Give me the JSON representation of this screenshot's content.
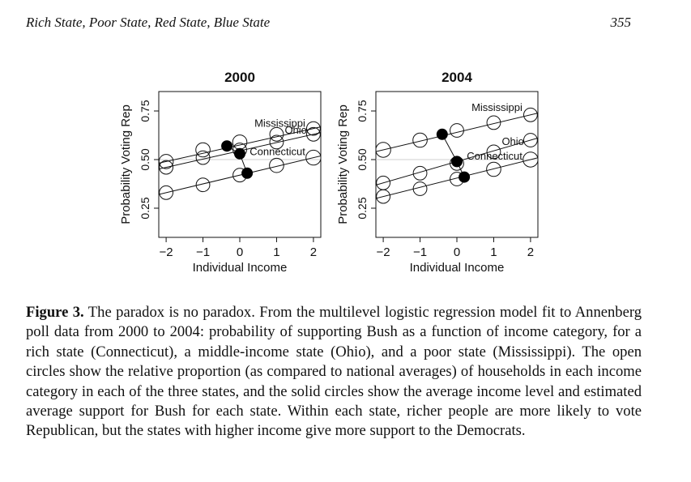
{
  "running_head": "Rich State, Poor State, Red State, Blue State",
  "page_number": "355",
  "figure": {
    "panels": [
      {
        "title": "2000",
        "ylabel": "Probability Voting Rep",
        "xlabel": "Individual Income"
      },
      {
        "title": "2004",
        "ylabel": "Probability Voting Rep",
        "xlabel": "Individual Income"
      }
    ],
    "x_ticks": [
      "−2",
      "−1",
      "0",
      "1",
      "2"
    ],
    "y_ticks": [
      "0.25",
      "0.50",
      "0.75"
    ]
  },
  "caption": {
    "label": "Figure 3.",
    "text": " The paradox is no paradox. From the multilevel logistic regression model fit to Annenberg poll data from 2000 to 2004: probability of supporting Bush as a function of income category, for a rich state (Connecticut), a middle-income state (Ohio), and a poor state (Mississippi). The open circles show the relative proportion (as compared to national averages) of households in each income category in each of the three states, and the solid circles show the average income level and estimated average support for Bush for each state. Within each state, richer people are more likely to vote Republican, but the states with higher income give more support to the Democrats."
  },
  "chart_data": [
    {
      "type": "line",
      "title": "2000",
      "xlabel": "Individual Income",
      "ylabel": "Probability Voting Rep",
      "xlim": [
        -2.2,
        2.2
      ],
      "ylim": [
        0.1,
        0.85
      ],
      "x_ticks": [
        -2,
        -1,
        0,
        1,
        2
      ],
      "y_ticks": [
        0.25,
        0.5,
        0.75
      ],
      "grid": false,
      "x": [
        -2,
        -1,
        0,
        1,
        2
      ],
      "series": [
        {
          "name": "Mississippi",
          "values": [
            0.49,
            0.55,
            0.59,
            0.63,
            0.66
          ],
          "sizes": [
            0.7,
            0.7,
            0.7,
            0.6,
            0.6
          ],
          "mean": {
            "x": -0.35,
            "y": 0.57
          }
        },
        {
          "name": "Ohio",
          "values": [
            0.46,
            0.51,
            0.55,
            0.59,
            0.63
          ],
          "sizes": [
            0.6,
            0.6,
            0.6,
            0.6,
            0.6
          ],
          "mean": {
            "x": 0.0,
            "y": 0.53
          }
        },
        {
          "name": "Connecticut",
          "values": [
            0.33,
            0.37,
            0.42,
            0.47,
            0.51
          ],
          "sizes": [
            0.6,
            0.6,
            0.6,
            0.7,
            0.8
          ],
          "mean": {
            "x": 0.2,
            "y": 0.43
          }
        }
      ],
      "reference_line": 0.5
    },
    {
      "type": "line",
      "title": "2004",
      "xlabel": "Individual Income",
      "ylabel": "Probability Voting Rep",
      "xlim": [
        -2.2,
        2.2
      ],
      "ylim": [
        0.1,
        0.85
      ],
      "x_ticks": [
        -2,
        -1,
        0,
        1,
        2
      ],
      "y_ticks": [
        0.25,
        0.5,
        0.75
      ],
      "grid": false,
      "x": [
        -2,
        -1,
        0,
        1,
        2
      ],
      "series": [
        {
          "name": "Mississippi",
          "values": [
            0.55,
            0.6,
            0.65,
            0.69,
            0.73
          ],
          "sizes": [
            0.8,
            0.7,
            0.6,
            0.6,
            0.6
          ],
          "mean": {
            "x": -0.4,
            "y": 0.63
          }
        },
        {
          "name": "Ohio",
          "values": [
            0.38,
            0.43,
            0.48,
            0.54,
            0.6
          ],
          "sizes": [
            0.6,
            0.6,
            0.6,
            0.6,
            0.6
          ],
          "mean": {
            "x": 0.0,
            "y": 0.49
          }
        },
        {
          "name": "Connecticut",
          "values": [
            0.31,
            0.35,
            0.4,
            0.45,
            0.5
          ],
          "sizes": [
            0.6,
            0.6,
            0.6,
            0.7,
            0.8
          ],
          "mean": {
            "x": 0.2,
            "y": 0.41
          }
        }
      ],
      "reference_line": 0.5
    }
  ]
}
